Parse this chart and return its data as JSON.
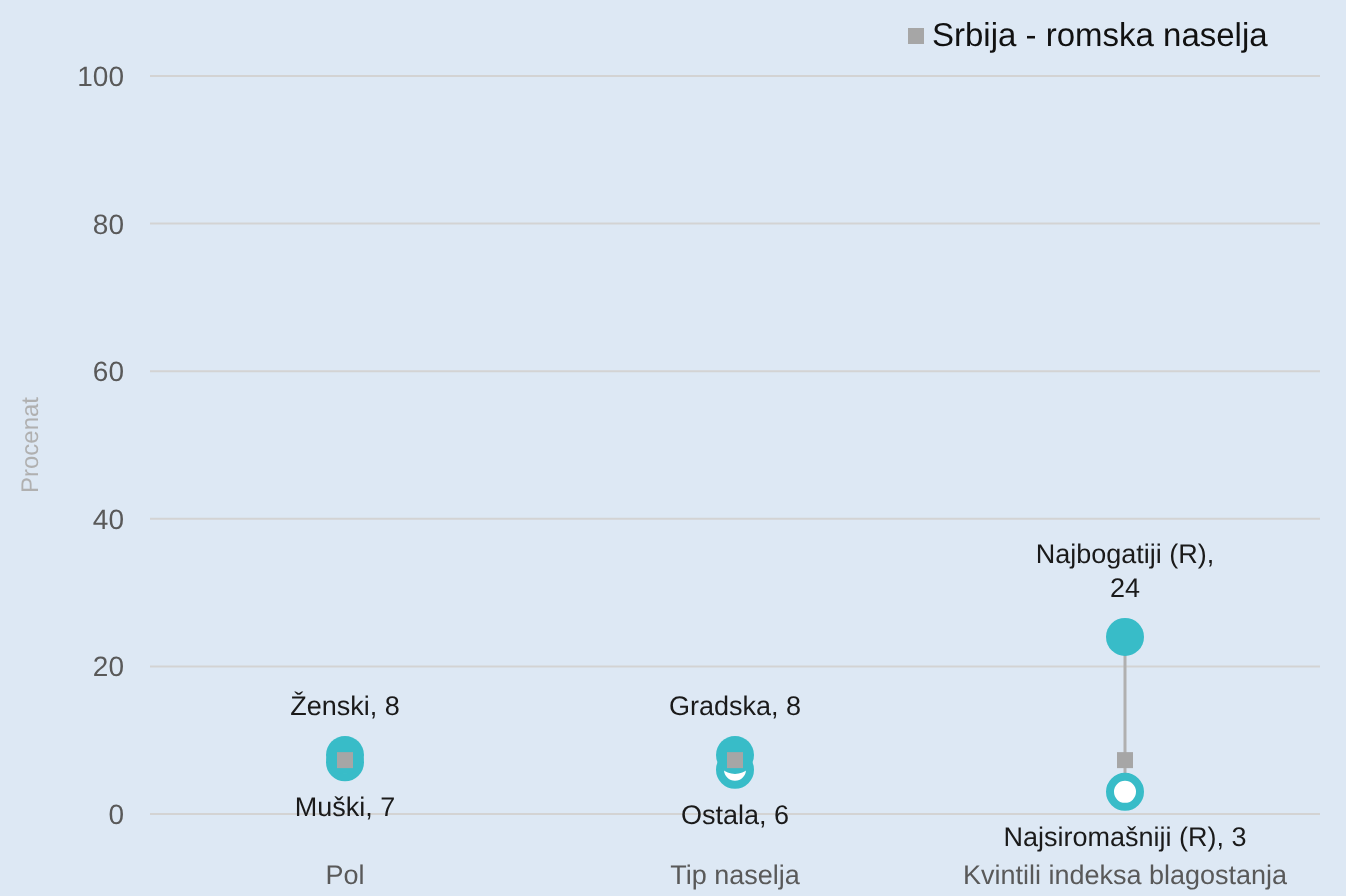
{
  "chart_data": {
    "type": "scatter",
    "ylabel": "Procenat",
    "categories": [
      "Pol",
      "Tip naselja",
      "Kvintili indeksa blagostanja"
    ],
    "ylim": [
      0,
      100
    ],
    "yticks": [
      0,
      20,
      40,
      60,
      80,
      100
    ],
    "grid": "y",
    "legend": "top right",
    "series": [
      {
        "color": "#38bcc8",
        "marker": "circle",
        "values": [
          8,
          8,
          24
        ],
        "value_labels": [
          "Ženski, 8",
          "Gradska, 8",
          "Najbogatiji (R), 24"
        ]
      },
      {
        "color": "#38bcc8",
        "marker": "circle",
        "values": [
          7,
          6,
          3
        ],
        "value_labels": [
          "Muški, 7",
          "Ostala, 6",
          "Najsiromašniji (R), 3"
        ]
      },
      {
        "name": "Srbija - romska naselja",
        "color": "#a6a6a6",
        "marker": "square",
        "values": [
          7.3,
          7.3,
          7.3
        ]
      }
    ]
  }
}
